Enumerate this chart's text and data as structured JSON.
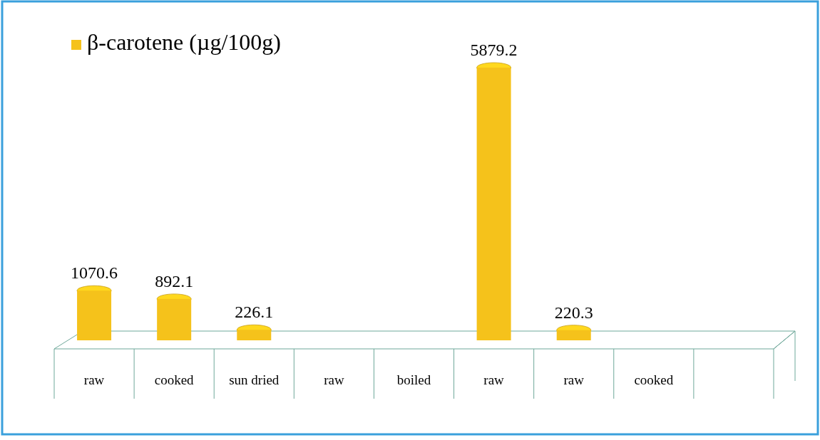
{
  "chart_data": {
    "type": "bar",
    "categories": [
      "raw",
      "cooked",
      "sun dried",
      "raw",
      "boiled",
      "raw",
      "raw",
      "cooked",
      null
    ],
    "series": [
      {
        "name": "β-carotene (µg/100g)",
        "color": "#f5c21b",
        "values": [
          1070.6,
          892.1,
          226.1,
          null,
          null,
          5879.2,
          220.3,
          null,
          null
        ]
      }
    ],
    "data_labels": true,
    "legend": "top left"
  }
}
